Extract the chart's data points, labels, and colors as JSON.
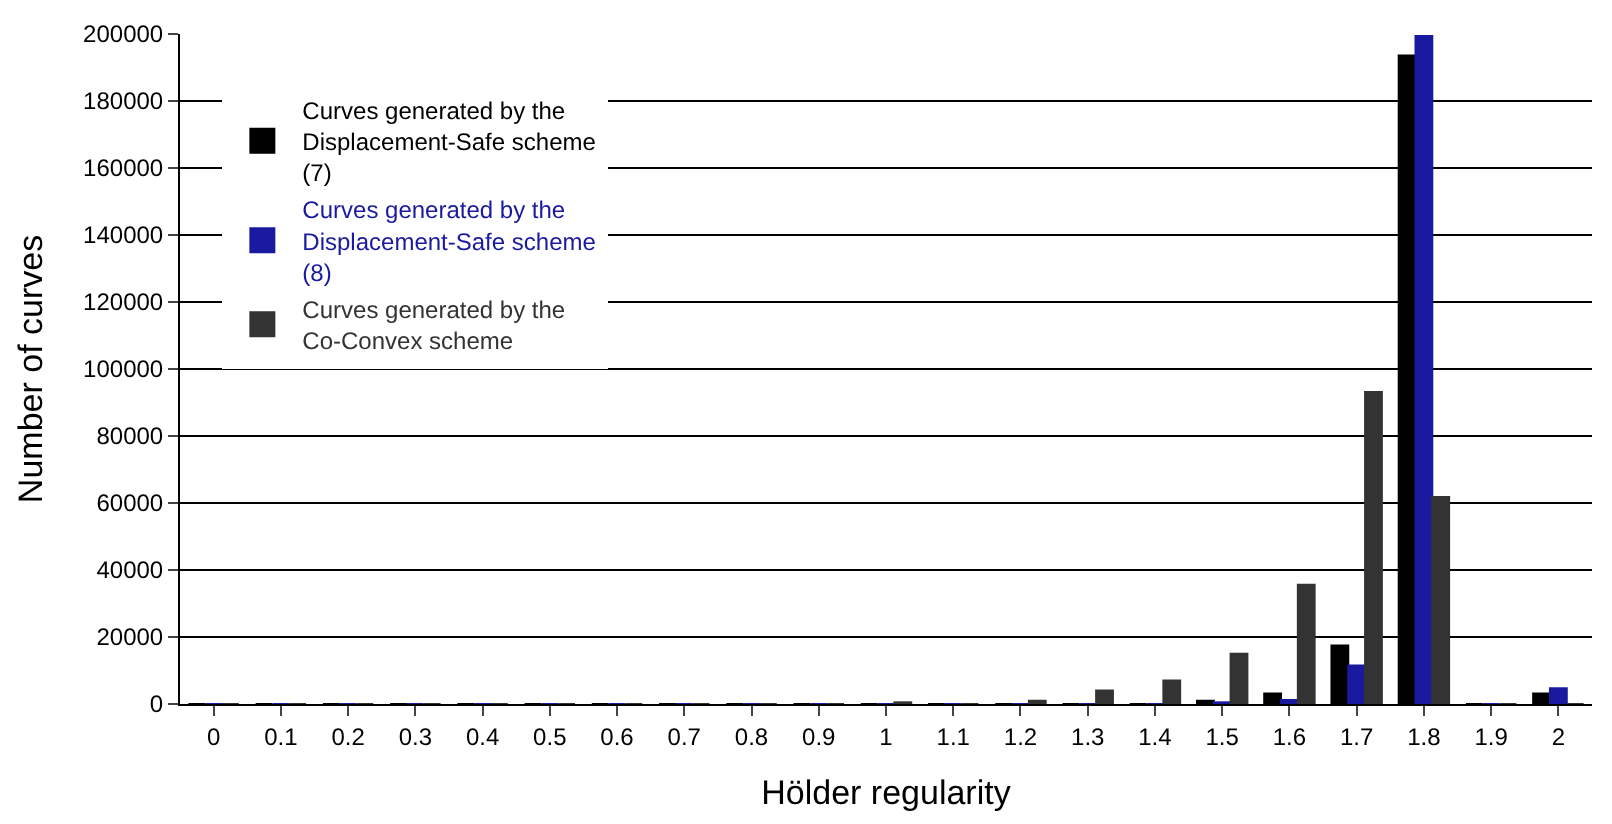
{
  "chart_data": {
    "type": "bar",
    "xlabel": "Hölder regularity",
    "ylabel": "Number of curves",
    "categories": [
      "0",
      "0.1",
      "0.2",
      "0.3",
      "0.4",
      "0.5",
      "0.6",
      "0.7",
      "0.8",
      "0.9",
      "1",
      "1.1",
      "1.2",
      "1.3",
      "1.4",
      "1.5",
      "1.6",
      "1.7",
      "1.8",
      "1.9",
      "2"
    ],
    "series": [
      {
        "name": "Curves generated by the Displacement-Safe scheme (7)",
        "color": "#000000",
        "values": [
          0,
          0,
          0,
          0,
          0,
          0,
          0,
          0,
          0,
          0,
          0,
          0,
          0,
          0,
          0,
          1000,
          3100,
          17500,
          193600,
          0,
          3100
        ]
      },
      {
        "name": "Curves generated by the Displacement-Safe scheme (8)",
        "color": "#1a1aa0",
        "values": [
          0,
          0,
          0,
          0,
          0,
          0,
          0,
          0,
          0,
          0,
          0,
          0,
          0,
          0,
          0,
          500,
          1200,
          11500,
          199400,
          0,
          4700
        ]
      },
      {
        "name": "Curves generated by the Co-Convex scheme",
        "color": "#333333",
        "values": [
          0,
          0,
          0,
          0,
          0,
          0,
          0,
          0,
          0,
          0,
          500,
          0,
          1000,
          4000,
          7000,
          15000,
          35600,
          93100,
          61800,
          0,
          0
        ]
      }
    ],
    "ylim": [
      0,
      200000
    ],
    "yticks": [
      0,
      20000,
      40000,
      60000,
      80000,
      100000,
      120000,
      140000,
      160000,
      180000,
      200000
    ],
    "grid": "y",
    "legend": "top left"
  }
}
